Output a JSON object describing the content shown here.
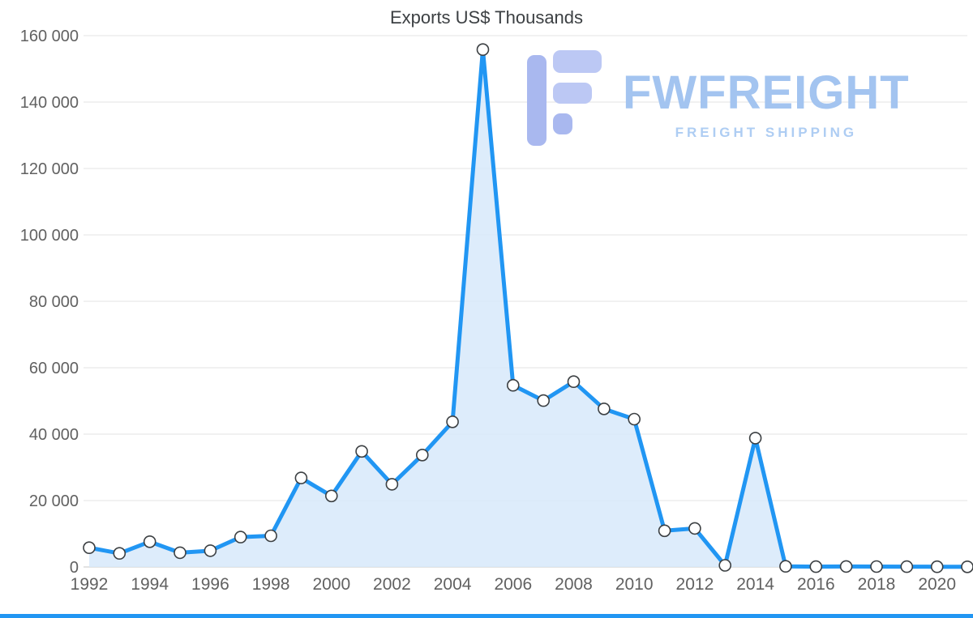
{
  "chart_data": {
    "type": "area",
    "title": "Exports US$ Thousands",
    "xlabel": "",
    "ylabel": "",
    "x": [
      1992,
      1993,
      1994,
      1995,
      1996,
      1997,
      1998,
      1999,
      2000,
      2001,
      2002,
      2003,
      2004,
      2005,
      2006,
      2007,
      2008,
      2009,
      2010,
      2011,
      2012,
      2013,
      2014,
      2015,
      2016,
      2017,
      2018,
      2019,
      2020,
      2021
    ],
    "values": [
      5800,
      4100,
      7600,
      4300,
      4900,
      9000,
      9400,
      26800,
      21400,
      34800,
      24900,
      33700,
      43700,
      155800,
      54700,
      50100,
      55800,
      47600,
      44500,
      10900,
      11600,
      500,
      38800,
      200,
      100,
      150,
      120,
      100,
      80,
      60
    ],
    "ylim": [
      0,
      160000
    ],
    "ytick_step": 20000,
    "xticks": [
      1992,
      1994,
      1996,
      1998,
      2000,
      2002,
      2004,
      2006,
      2008,
      2010,
      2012,
      2014,
      2016,
      2018,
      2020
    ],
    "grid": "horizontal",
    "legend": "none",
    "marker": "white-circle-dark-outline",
    "colors": {
      "line": "#2196f3",
      "fill": "#d7e9fa",
      "marker_fill": "#ffffff",
      "marker_stroke": "#3c4043",
      "grid": "#e3e3e3",
      "axis": "#c7c7c7",
      "tick_text": "#616161",
      "title_text": "#3c4043"
    }
  },
  "watermark": {
    "brand": "FWFREIGHT",
    "tagline": "FREIGHT SHIPPING",
    "brand_color": "#a3c4f0",
    "tagline_color": "#aecdf3",
    "logo_color": "#a9b8ef",
    "logo_color_light": "#bcc8f4"
  },
  "accent_bar_color": "#2196f3"
}
